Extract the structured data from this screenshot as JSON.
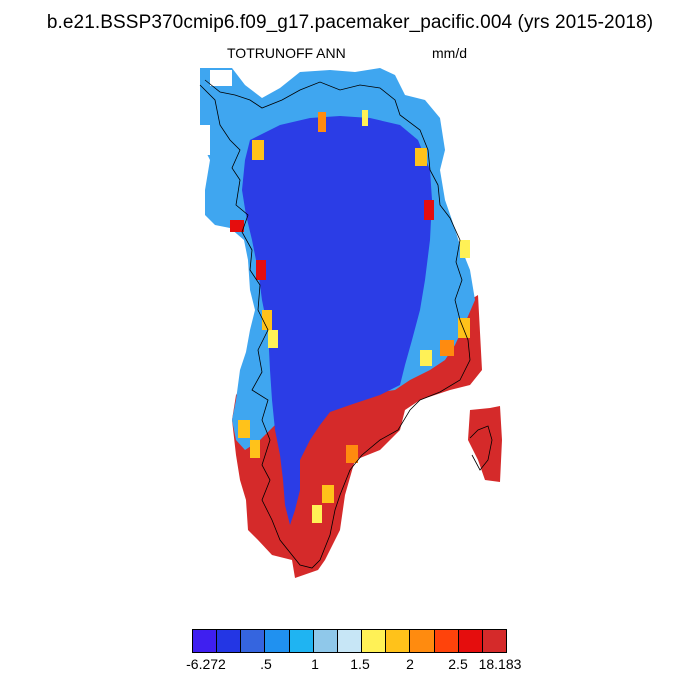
{
  "header": {
    "title": "b.e21.BSSP370cmip6.f09_g17.pacemaker_pacific.004 (yrs 2015-2018)",
    "variable": "TOTRUNOFF ANN",
    "units": "mm/d"
  },
  "map": {
    "region": "Greenland",
    "interior_color": "#2b3de6",
    "coast_color": "#d52a2a"
  },
  "colorbar": {
    "colors": [
      "#3f1ff0",
      "#2336e4",
      "#3565df",
      "#2091f0",
      "#1fb4f2",
      "#8fc8ea",
      "#c7e6f6",
      "#fff156",
      "#ffc21a",
      "#ff8b0f",
      "#ff430b",
      "#e50d0d",
      "#d52a2a"
    ],
    "labels": [
      "-6.272",
      ".5",
      "1",
      "1.5",
      "2",
      "2.5",
      "18.183"
    ]
  }
}
